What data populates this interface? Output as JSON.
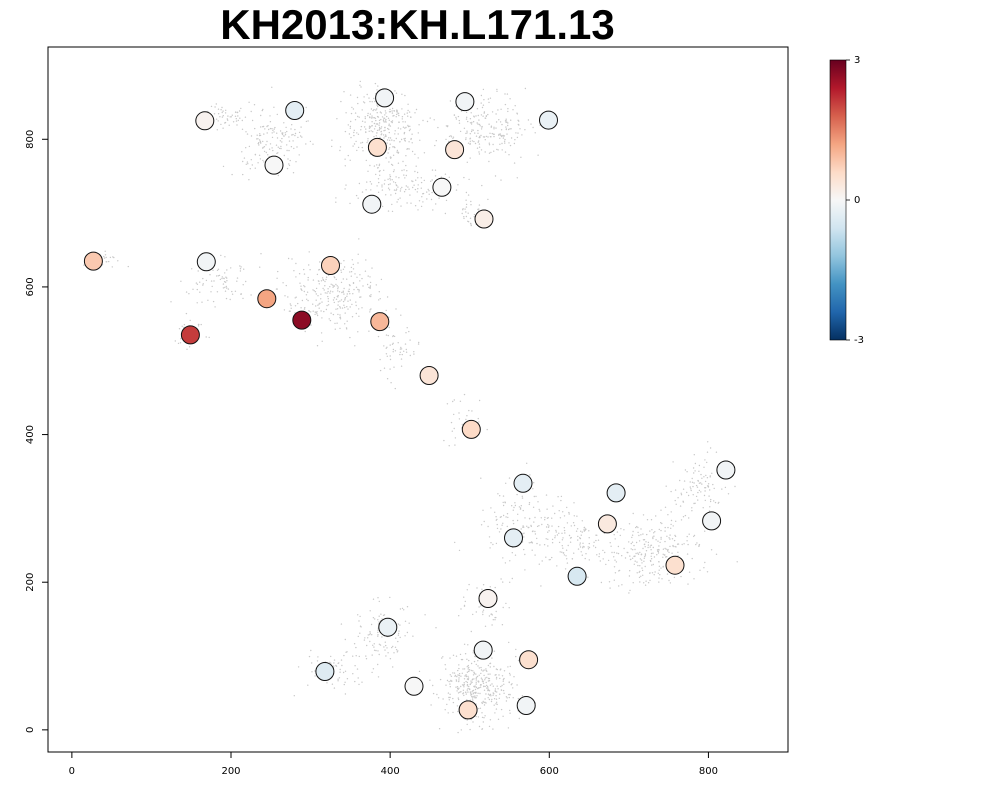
{
  "chart_data": {
    "type": "scatter",
    "title": "KH2013:KH.L171.13",
    "xlabel": "",
    "ylabel": "",
    "xlim": [
      -30,
      900
    ],
    "ylim": [
      -30,
      925
    ],
    "x_ticks": [
      0,
      200,
      400,
      600,
      800
    ],
    "y_ticks": [
      0,
      200,
      400,
      600,
      800
    ],
    "grid": false,
    "colorbar": {
      "min": -3,
      "max": 3,
      "ticks": [
        3,
        0,
        -3
      ],
      "colors": [
        "#67001f",
        "#b2182b",
        "#d6604d",
        "#f4a582",
        "#fddbc7",
        "#f7f7f7",
        "#d1e5f0",
        "#92c5de",
        "#4393c3",
        "#2166ac",
        "#053061"
      ]
    },
    "background_cells_color": "#c8c8c8",
    "background_clusters": [
      {
        "cx": 390,
        "cy": 815,
        "sx": 40,
        "sy": 45,
        "n": 320
      },
      {
        "cx": 520,
        "cy": 815,
        "sx": 45,
        "sy": 35,
        "n": 220
      },
      {
        "cx": 250,
        "cy": 800,
        "sx": 40,
        "sy": 40,
        "n": 160
      },
      {
        "cx": 190,
        "cy": 830,
        "sx": 20,
        "sy": 15,
        "n": 50
      },
      {
        "cx": 420,
        "cy": 735,
        "sx": 55,
        "sy": 30,
        "n": 140
      },
      {
        "cx": 505,
        "cy": 700,
        "sx": 20,
        "sy": 20,
        "n": 40
      },
      {
        "cx": 330,
        "cy": 590,
        "sx": 55,
        "sy": 40,
        "n": 280
      },
      {
        "cx": 180,
        "cy": 610,
        "sx": 35,
        "sy": 25,
        "n": 80
      },
      {
        "cx": 150,
        "cy": 540,
        "sx": 20,
        "sy": 18,
        "n": 40
      },
      {
        "cx": 40,
        "cy": 640,
        "sx": 20,
        "sy": 10,
        "n": 20
      },
      {
        "cx": 410,
        "cy": 510,
        "sx": 25,
        "sy": 30,
        "n": 50
      },
      {
        "cx": 490,
        "cy": 420,
        "sx": 25,
        "sy": 25,
        "n": 30
      },
      {
        "cx": 570,
        "cy": 280,
        "sx": 50,
        "sy": 45,
        "n": 180
      },
      {
        "cx": 730,
        "cy": 240,
        "sx": 50,
        "sy": 35,
        "n": 260
      },
      {
        "cx": 790,
        "cy": 330,
        "sx": 35,
        "sy": 35,
        "n": 100
      },
      {
        "cx": 640,
        "cy": 250,
        "sx": 35,
        "sy": 30,
        "n": 80
      },
      {
        "cx": 510,
        "cy": 60,
        "sx": 40,
        "sy": 40,
        "n": 380
      },
      {
        "cx": 390,
        "cy": 130,
        "sx": 35,
        "sy": 35,
        "n": 110
      },
      {
        "cx": 330,
        "cy": 80,
        "sx": 30,
        "sy": 25,
        "n": 60
      },
      {
        "cx": 520,
        "cy": 170,
        "sx": 25,
        "sy": 30,
        "n": 50
      }
    ],
    "points": [
      {
        "x": 167,
        "y": 825,
        "value": 0.1
      },
      {
        "x": 280,
        "y": 839,
        "value": -0.3
      },
      {
        "x": 393,
        "y": 856,
        "value": -0.1
      },
      {
        "x": 494,
        "y": 851,
        "value": -0.1
      },
      {
        "x": 599,
        "y": 826,
        "value": -0.2
      },
      {
        "x": 254,
        "y": 765,
        "value": 0.0
      },
      {
        "x": 384,
        "y": 789,
        "value": 0.5
      },
      {
        "x": 481,
        "y": 786,
        "value": 0.4
      },
      {
        "x": 465,
        "y": 735,
        "value": 0.0
      },
      {
        "x": 377,
        "y": 712,
        "value": -0.1
      },
      {
        "x": 518,
        "y": 692,
        "value": 0.2
      },
      {
        "x": 27,
        "y": 635,
        "value": 0.8
      },
      {
        "x": 169,
        "y": 634,
        "value": -0.1
      },
      {
        "x": 325,
        "y": 629,
        "value": 0.7
      },
      {
        "x": 245,
        "y": 584,
        "value": 1.2
      },
      {
        "x": 289,
        "y": 555,
        "value": 2.7
      },
      {
        "x": 387,
        "y": 553,
        "value": 1.0
      },
      {
        "x": 149,
        "y": 535,
        "value": 2.1
      },
      {
        "x": 449,
        "y": 480,
        "value": 0.4
      },
      {
        "x": 502,
        "y": 407,
        "value": 0.6
      },
      {
        "x": 567,
        "y": 334,
        "value": -0.3
      },
      {
        "x": 684,
        "y": 321,
        "value": -0.3
      },
      {
        "x": 822,
        "y": 352,
        "value": -0.1
      },
      {
        "x": 804,
        "y": 283,
        "value": -0.1
      },
      {
        "x": 673,
        "y": 279,
        "value": 0.3
      },
      {
        "x": 555,
        "y": 260,
        "value": -0.3
      },
      {
        "x": 758,
        "y": 223,
        "value": 0.5
      },
      {
        "x": 635,
        "y": 208,
        "value": -0.5
      },
      {
        "x": 523,
        "y": 178,
        "value": 0.1
      },
      {
        "x": 397,
        "y": 139,
        "value": -0.2
      },
      {
        "x": 517,
        "y": 108,
        "value": -0.1
      },
      {
        "x": 574,
        "y": 95,
        "value": 0.5
      },
      {
        "x": 318,
        "y": 79,
        "value": -0.4
      },
      {
        "x": 430,
        "y": 59,
        "value": 0.0
      },
      {
        "x": 498,
        "y": 27,
        "value": 0.5
      },
      {
        "x": 571,
        "y": 33,
        "value": -0.1
      }
    ]
  }
}
